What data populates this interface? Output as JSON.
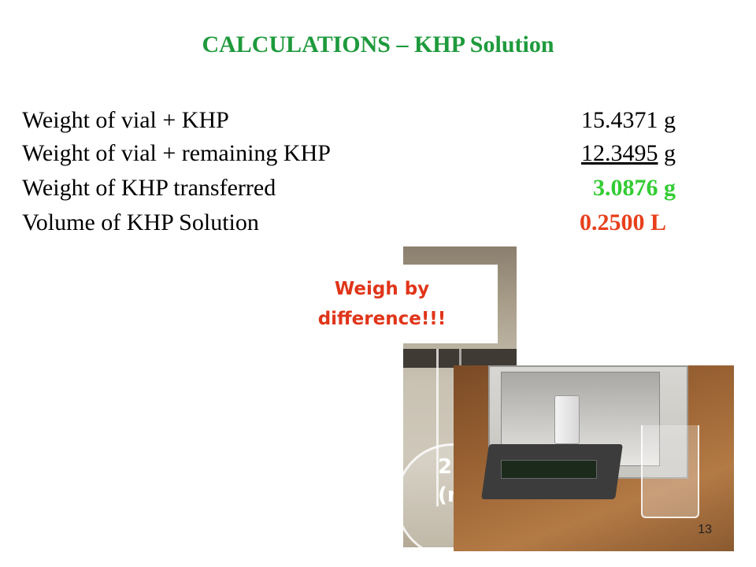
{
  "title": "CALCULATIONS – KHP Solution",
  "rows": [
    {
      "label": "Weight of vial + KHP",
      "value": "15.4371 g"
    },
    {
      "label": "Weight of vial + remaining KHP",
      "value": "12.3495",
      "unit": " g"
    },
    {
      "label": "Weight of KHP transferred",
      "value": "3.0876 g"
    },
    {
      "label": "Volume  of KHP Solution",
      "value": "0.2500 L"
    }
  ],
  "callout": {
    "line1": "Weigh by",
    "line2": "difference!!!"
  },
  "flask_text": {
    "line1": "2",
    "line2": "(n"
  },
  "page_number": "13",
  "colors": {
    "title": "#1e9a3c",
    "transferred": "#33cc33",
    "volume": "#e8401c",
    "callout": "#e0351a"
  }
}
